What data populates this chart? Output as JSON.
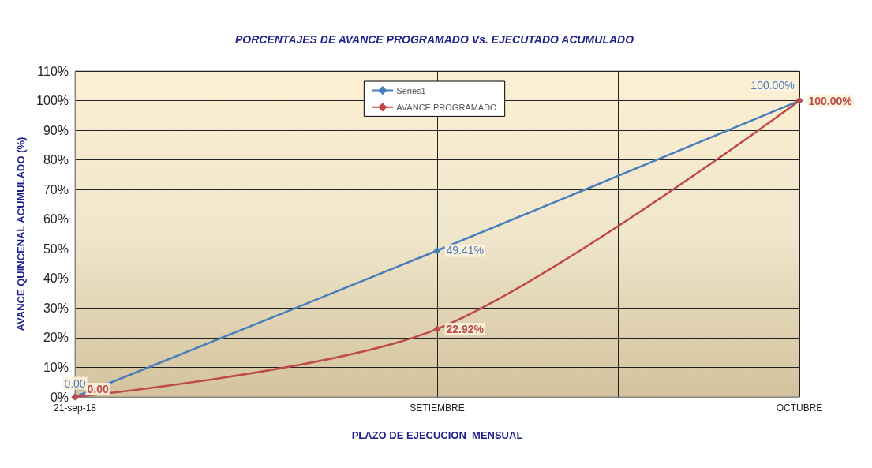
{
  "chart_data": {
    "type": "line",
    "title": "PORCENTAJES DE AVANCE PROGRAMADO Vs. EJECUTADO ACUMULADO",
    "xlabel": "PLAZO DE EJECUCION  MENSUAL",
    "ylabel": "AVANCE QUINCENAL ACUMULADO (%)",
    "categories": [
      "21-sep-18",
      "SETIEMBRE",
      "OCTUBRE"
    ],
    "series": [
      {
        "name": "Series1",
        "color": "#4a7ebb",
        "values": [
          0,
          49.41,
          100
        ],
        "value_labels": [
          "0.00",
          "49.41%",
          "100.00%"
        ]
      },
      {
        "name": "AVANCE PROGRAMADO",
        "color": "#be4b48",
        "values": [
          0,
          22.92,
          100
        ],
        "value_labels": [
          "0.00",
          "22.92%",
          "100.00%"
        ]
      }
    ],
    "ylim": [
      0,
      110
    ],
    "yticks": [
      {
        "value": 0,
        "label": "0%"
      },
      {
        "value": 10,
        "label": "10%"
      },
      {
        "value": 20,
        "label": "20%"
      },
      {
        "value": 30,
        "label": "30%"
      },
      {
        "value": 40,
        "label": "40%"
      },
      {
        "value": 50,
        "label": "50%"
      },
      {
        "value": 60,
        "label": "60%"
      },
      {
        "value": 70,
        "label": "70%"
      },
      {
        "value": 80,
        "label": "80%"
      },
      {
        "value": 90,
        "label": "90%"
      },
      {
        "value": 100,
        "label": "100%"
      },
      {
        "value": 110,
        "label": "110%"
      }
    ],
    "grid": true,
    "legend": "top",
    "marker": "diamond",
    "line_style": "solid"
  }
}
